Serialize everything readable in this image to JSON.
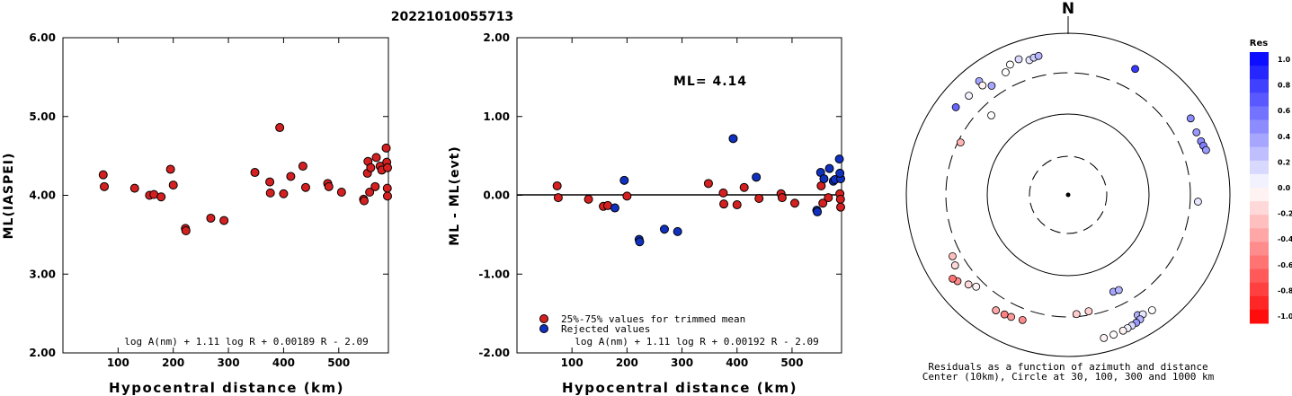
{
  "title": "20221010055713",
  "panel_left": {
    "ylabel": "ML(IASPEI)",
    "xlabel": "Hypocentral distance (km)",
    "formula": "log A(nm) + 1.11 log R + 0.00189 R - 2.09",
    "yticks": [
      "6.00",
      "5.00",
      "4.00",
      "3.00",
      "2.00"
    ],
    "xticks": [
      "100",
      "200",
      "300",
      "400",
      "500"
    ]
  },
  "panel_mid": {
    "ylabel": "ML - ML(evt)",
    "xlabel": "Hypocentral distance (km)",
    "ml_label": "ML= 4.14",
    "legend": [
      "25%-75% values for trimmed mean",
      "Rejected values"
    ],
    "formula": "log A(nm) + 1.11 log R + 0.00192 R - 2.09",
    "yticks": [
      "2.00",
      "1.00",
      "0.00",
      "-1.00",
      "-2.00"
    ],
    "xticks": [
      "100",
      "200",
      "300",
      "400",
      "500"
    ]
  },
  "panel_polar": {
    "north": "N",
    "caption_line1": "Residuals as a function of azimuth and distance",
    "caption_line2": "Center (10km), Circle at 30, 100, 300 and 1000 km",
    "colorbar_title": "Res",
    "colorbar_ticks": [
      "1.0",
      "0.8",
      "0.6",
      "0.4",
      "0.2",
      "0.0",
      "-0.2",
      "-0.4",
      "-0.6",
      "-0.8",
      "-1.0"
    ]
  },
  "chart_data": [
    {
      "type": "scatter",
      "title": "20221010055713",
      "xlabel": "Hypocentral distance (km)",
      "ylabel": "ML(IASPEI)",
      "xlim": [
        0,
        590
      ],
      "ylim": [
        2.0,
        6.0
      ],
      "grid": false,
      "series": [
        {
          "color": "#d42020",
          "points": [
            [
              73,
              4.26
            ],
            [
              75,
              4.11
            ],
            [
              130,
              4.09
            ],
            [
              157,
              4.0
            ],
            [
              165,
              4.01
            ],
            [
              178,
              3.98
            ],
            [
              195,
              4.33
            ],
            [
              200,
              4.13
            ],
            [
              222,
              3.58
            ],
            [
              223,
              3.55
            ],
            [
              268,
              3.71
            ],
            [
              292,
              3.68
            ],
            [
              348,
              4.29
            ],
            [
              375,
              4.17
            ],
            [
              376,
              4.03
            ],
            [
              393,
              4.86
            ],
            [
              400,
              4.02
            ],
            [
              413,
              4.24
            ],
            [
              435,
              4.37
            ],
            [
              440,
              4.1
            ],
            [
              480,
              4.15
            ],
            [
              482,
              4.11
            ],
            [
              505,
              4.04
            ],
            [
              545,
              3.95
            ],
            [
              546,
              3.93
            ],
            [
              552,
              4.28
            ],
            [
              553,
              4.43
            ],
            [
              556,
              4.04
            ],
            [
              558,
              4.35
            ],
            [
              566,
              4.11
            ],
            [
              568,
              4.48
            ],
            [
              575,
              4.37
            ],
            [
              578,
              4.32
            ],
            [
              586,
              4.6
            ],
            [
              587,
              4.42
            ],
            [
              588,
              4.09
            ],
            [
              589,
              3.99
            ],
            [
              592,
              4.35
            ]
          ]
        }
      ]
    },
    {
      "type": "scatter",
      "xlabel": "Hypocentral distance (km)",
      "ylabel": "ML - ML(evt)",
      "xlim": [
        0,
        590
      ],
      "ylim": [
        -2.0,
        2.0
      ],
      "grid": false,
      "legend_position": "bottom-left",
      "reference_line_y": 0.0,
      "annotation": "ML= 4.14",
      "series": [
        {
          "name": "25%-75% values for trimmed mean",
          "color": "#d42020",
          "points": [
            [
              73,
              0.12
            ],
            [
              75,
              -0.03
            ],
            [
              130,
              -0.05
            ],
            [
              157,
              -0.14
            ],
            [
              165,
              -0.13
            ],
            [
              200,
              -0.01
            ],
            [
              348,
              0.15
            ],
            [
              375,
              0.03
            ],
            [
              376,
              -0.11
            ],
            [
              400,
              -0.12
            ],
            [
              413,
              0.1
            ],
            [
              440,
              -0.04
            ],
            [
              480,
              0.02
            ],
            [
              482,
              -0.03
            ],
            [
              505,
              -0.1
            ],
            [
              553,
              0.12
            ],
            [
              556,
              -0.1
            ],
            [
              566,
              -0.03
            ],
            [
              587,
              0.02
            ],
            [
              588,
              -0.05
            ],
            [
              589,
              -0.15
            ]
          ]
        },
        {
          "name": "Rejected values",
          "color": "#1030c0",
          "points": [
            [
              178,
              -0.16
            ],
            [
              195,
              0.19
            ],
            [
              222,
              -0.56
            ],
            [
              223,
              -0.59
            ],
            [
              268,
              -0.43
            ],
            [
              292,
              -0.46
            ],
            [
              393,
              0.72
            ],
            [
              435,
              0.23
            ],
            [
              545,
              -0.19
            ],
            [
              546,
              -0.21
            ],
            [
              552,
              0.29
            ],
            [
              558,
              0.21
            ],
            [
              568,
              0.34
            ],
            [
              575,
              0.18
            ],
            [
              578,
              0.2
            ],
            [
              586,
              0.46
            ],
            [
              592,
              0.21
            ],
            [
              587,
              0.28
            ]
          ]
        }
      ]
    },
    {
      "type": "scatter",
      "title": "Residuals as a function of azimuth and distance",
      "subtitle": "Center (10km), Circle at 30, 100, 300 and 1000 km",
      "coordinate_system": "polar (azimuth in degrees from north, radius in km on log scale)",
      "rings_km": [
        30,
        100,
        300,
        1000
      ],
      "colorbar": {
        "title": "Res",
        "min": -1.0,
        "max": 1.0,
        "positive_color": "#0000ff",
        "negative_color": "#ff0000"
      },
      "points_az_dist_res": [
        [
          28,
          560,
          0.78
        ],
        [
          344,
          520,
          0.1
        ],
        [
          346,
          540,
          0.2
        ],
        [
          348,
          550,
          0.3
        ],
        [
          340,
          590,
          0.15
        ],
        [
          336,
          560,
          0.0
        ],
        [
          322,
          590,
          0.35
        ],
        [
          333,
          480,
          0.0
        ],
        [
          322,
          500,
          -0.05
        ],
        [
          315,
          520,
          0.05
        ],
        [
          308,
          555,
          0.6
        ],
        [
          325,
          420,
          0.35
        ],
        [
          316,
          220,
          0.0
        ],
        [
          58,
          590,
          0.45
        ],
        [
          64,
          560,
          0.4
        ],
        [
          68,
          570,
          0.45
        ],
        [
          70,
          580,
          0.5
        ],
        [
          72,
          600,
          0.4
        ],
        [
          93,
          380,
          0.1
        ],
        [
          155,
          200,
          0.35
        ],
        [
          152,
          205,
          0.3
        ],
        [
          170,
          270,
          -0.18
        ],
        [
          176,
          280,
          -0.2
        ],
        [
          150,
          500,
          0.3
        ],
        [
          148,
          530,
          0.1
        ],
        [
          144,
          560,
          0.0
        ],
        [
          150,
          580,
          0.3
        ],
        [
          152,
          600,
          0.4
        ],
        [
          154,
          610,
          0.15
        ],
        [
          156,
          620,
          0.05
        ],
        [
          158,
          630,
          -0.05
        ],
        [
          162,
          640,
          0.0
        ],
        [
          166,
          650,
          -0.05
        ],
        [
          200,
          420,
          -0.45
        ],
        [
          205,
          440,
          -0.4
        ],
        [
          208,
          450,
          -0.5
        ],
        [
          212,
          460,
          -0.35
        ],
        [
          225,
          380,
          -0.05
        ],
        [
          228,
          430,
          -0.15
        ],
        [
          232,
          520,
          -0.45
        ],
        [
          234,
          560,
          -0.55
        ],
        [
          242,
          390,
          -0.25
        ],
        [
          238,
          420,
          -0.15
        ],
        [
          296,
          280,
          -0.3
        ]
      ]
    }
  ]
}
